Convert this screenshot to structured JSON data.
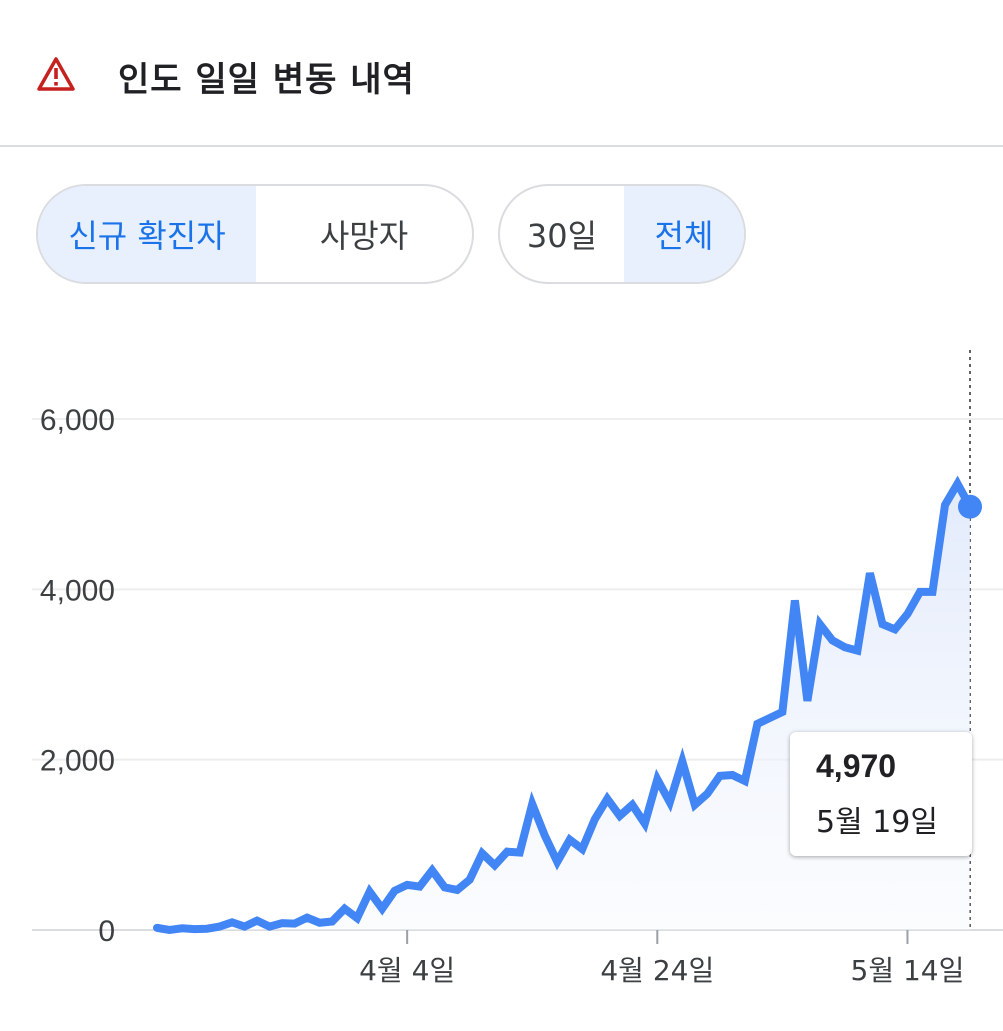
{
  "header": {
    "title": "인도 일일 변동 내역",
    "icon": "warning-triangle-icon",
    "icon_color": "#c5221f"
  },
  "tabs_metric": {
    "options": [
      "신규 확진자",
      "사망자"
    ],
    "selected": 0
  },
  "tabs_range": {
    "options": [
      "30일",
      "전체"
    ],
    "selected": 1
  },
  "colors": {
    "line": "#4285f4",
    "selected_bg": "#e8f0fe",
    "selected_text": "#1a73e8"
  },
  "tooltip": {
    "value": "4,970",
    "date": "5월 19일"
  },
  "chart_data": {
    "type": "area",
    "ylim": [
      0,
      6000
    ],
    "y_ticks": [
      0,
      2000,
      4000,
      6000
    ],
    "y_tick_labels": [
      "0",
      "2,000",
      "4,000",
      "6,000"
    ],
    "x_tick_labels": [
      "4월 4일",
      "4월 24일",
      "5월 14일"
    ],
    "x_tick_index": [
      20,
      40,
      60
    ],
    "grid": true,
    "series": [
      {
        "values": [
          25,
          0,
          20,
          10,
          15,
          40,
          90,
          40,
          110,
          40,
          80,
          75,
          145,
          85,
          100,
          250,
          140,
          450,
          250,
          460,
          530,
          510,
          700,
          500,
          470,
          590,
          900,
          760,
          920,
          910,
          1480,
          1110,
          800,
          1060,
          950,
          1300,
          1540,
          1340,
          1470,
          1250,
          1770,
          1500,
          1980,
          1470,
          1600,
          1810,
          1820,
          1750,
          2420,
          2490,
          2560,
          3870,
          2690,
          3590,
          3400,
          3320,
          3280,
          4190,
          3590,
          3530,
          3710,
          3970,
          3970,
          4990,
          5240,
          4970
        ]
      }
    ]
  }
}
